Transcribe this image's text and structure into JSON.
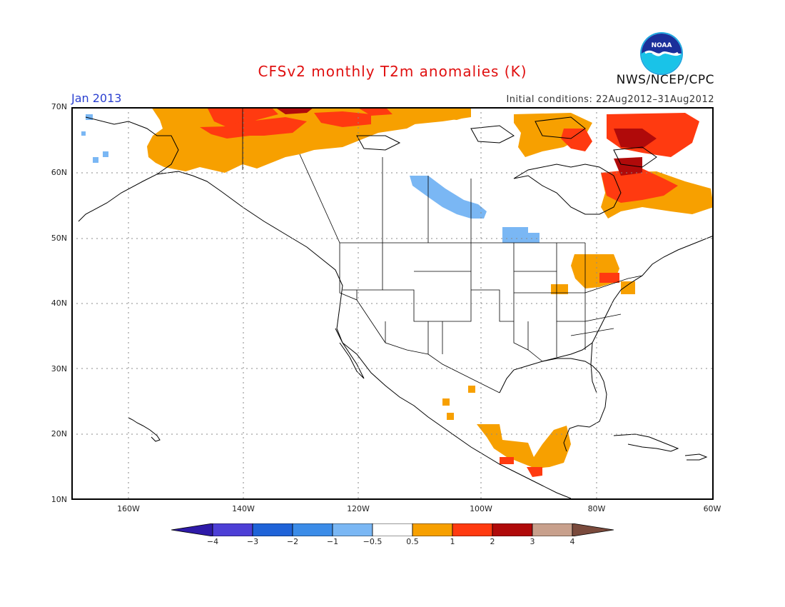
{
  "title": "CFSv2 monthly T2m anomalies (K)",
  "period": "Jan 2013",
  "initial_conditions": "Initial conditions: 22Aug2012–31Aug2012",
  "agency": "NWS/NCEP/CPC",
  "logo_text": "NOAA",
  "map": {
    "lon_range": [
      -172,
      -60
    ],
    "lat_range": [
      10,
      70
    ],
    "lat_labels": [
      "10N",
      "20N",
      "30N",
      "40N",
      "50N",
      "60N",
      "70N"
    ],
    "lon_labels": [
      "160W",
      "140W",
      "120W",
      "100W",
      "80W",
      "60W"
    ],
    "anomaly_regions": [
      {
        "name": "alaska-warm",
        "level": "0.5-1"
      },
      {
        "name": "nw-canada-arctic-warm",
        "level": "1-2"
      },
      {
        "name": "central-canada-cool",
        "level": "-1--0.5"
      },
      {
        "name": "hudson-bay-cool",
        "level": "-1--0.5"
      },
      {
        "name": "eastern-canada-warm",
        "level": "1-3"
      },
      {
        "name": "great-lakes-warm",
        "level": "0.5-1"
      },
      {
        "name": "mexico-central-america-warm",
        "level": "0.5-2"
      }
    ]
  },
  "colorbar": {
    "labels": [
      "−4",
      "−3",
      "−2",
      "−1",
      "−0.5",
      "0.5",
      "1",
      "2",
      "3",
      "4"
    ],
    "colors": [
      "#2e1aa8",
      "#4d3fd6",
      "#1f63d8",
      "#3b8ce8",
      "#7ab7f4",
      "#ffffff",
      "#f7a000",
      "#ff3a10",
      "#b00a0a",
      "#c8a08c",
      "#7a4a3c"
    ]
  }
}
